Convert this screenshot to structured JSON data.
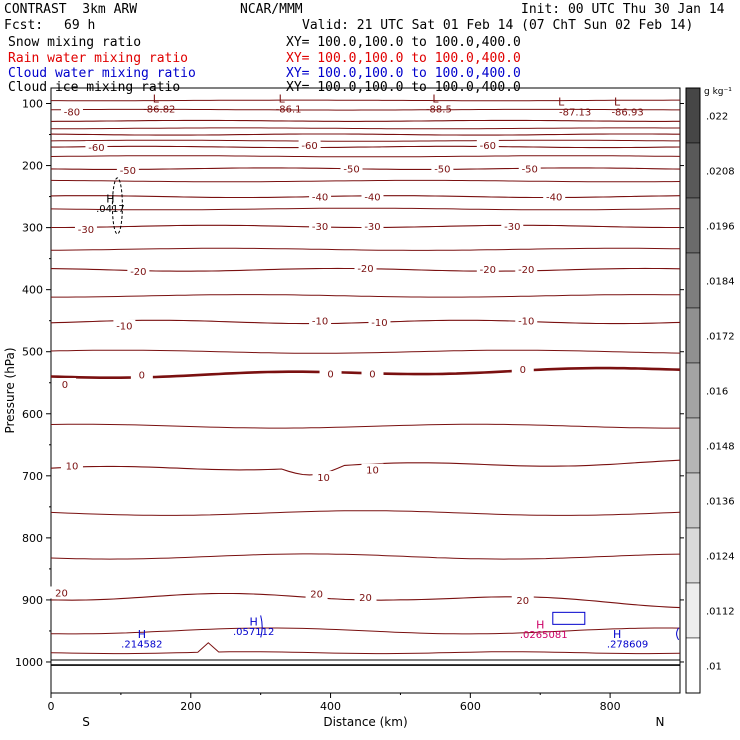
{
  "header": {
    "model": "CONTRAST  3km ARW",
    "center": "NCAR/MMM",
    "init": "Init: 00 UTC Thu 30 Jan 14",
    "fcst_label": "Fcst:",
    "fcst_value": "69 h",
    "valid": "Valid: 21 UTC Sat 01 Feb 14 (07 ChT Sun 02 Feb 14)"
  },
  "fields": [
    {
      "name": "Snow mixing ratio",
      "xy": "XY= 100.0,100.0 to 100.0,400.0",
      "color": "#000000"
    },
    {
      "name": "Rain water mixing ratio",
      "xy": "XY= 100.0,100.0 to 100.0,400.0",
      "color": "#e00000"
    },
    {
      "name": "Cloud water mixing ratio",
      "xy": "XY= 100.0,100.0 to 100.0,400.0",
      "color": "#0000cc"
    },
    {
      "name": "Cloud ice mixing ratio",
      "xy": "XY= 100.0,100.0 to 100.0,400.0",
      "color": "#000000"
    }
  ],
  "chart_data": {
    "type": "contour",
    "xlabel": "Distance (km)",
    "ylabel": "Pressure (hPa)",
    "x_range": [
      0,
      900
    ],
    "y_range": [
      1050,
      75
    ],
    "x_ticks": [
      "0",
      "200",
      "400",
      "600",
      "800"
    ],
    "x_tick_values": [
      0,
      200,
      400,
      600,
      800
    ],
    "y_ticks": [
      "100",
      "200",
      "300",
      "400",
      "500",
      "600",
      "700",
      "800",
      "900",
      "1000"
    ],
    "y_tick_values": [
      100,
      200,
      300,
      400,
      500,
      600,
      700,
      800,
      900,
      1000
    ],
    "end_labels": {
      "left": "S",
      "right": "N"
    },
    "temperature_contours_degC": [
      -80,
      -70,
      -60,
      -50,
      -40,
      -30,
      -20,
      -10,
      0,
      10,
      20
    ],
    "contour_labels": [
      {
        "text": "-80",
        "x": 30,
        "p": 113
      },
      {
        "text": "-60",
        "x": 65,
        "p": 170
      },
      {
        "text": "-60",
        "x": 370,
        "p": 167
      },
      {
        "text": "-60",
        "x": 625,
        "p": 167
      },
      {
        "text": "-50",
        "x": 110,
        "p": 207
      },
      {
        "text": "-50",
        "x": 430,
        "p": 205
      },
      {
        "text": "-50",
        "x": 560,
        "p": 205
      },
      {
        "text": "-50",
        "x": 685,
        "p": 205
      },
      {
        "text": "-40",
        "x": 385,
        "p": 250
      },
      {
        "text": "-40",
        "x": 460,
        "p": 250
      },
      {
        "text": "-40",
        "x": 720,
        "p": 250
      },
      {
        "text": "-30",
        "x": 50,
        "p": 302
      },
      {
        "text": "-30",
        "x": 385,
        "p": 297
      },
      {
        "text": "-30",
        "x": 460,
        "p": 297
      },
      {
        "text": "-30",
        "x": 660,
        "p": 297
      },
      {
        "text": "-20",
        "x": 125,
        "p": 370
      },
      {
        "text": "-20",
        "x": 450,
        "p": 365
      },
      {
        "text": "-20",
        "x": 625,
        "p": 367
      },
      {
        "text": "-20",
        "x": 680,
        "p": 367
      },
      {
        "text": "-10",
        "x": 105,
        "p": 458
      },
      {
        "text": "-10",
        "x": 385,
        "p": 450
      },
      {
        "text": "-10",
        "x": 470,
        "p": 452
      },
      {
        "text": "-10",
        "x": 680,
        "p": 450
      },
      {
        "text": "0",
        "x": 20,
        "p": 552
      },
      {
        "text": "0",
        "x": 130,
        "p": 537
      },
      {
        "text": "0",
        "x": 400,
        "p": 535
      },
      {
        "text": "0",
        "x": 460,
        "p": 535
      },
      {
        "text": "0",
        "x": 675,
        "p": 528
      },
      {
        "text": "10",
        "x": 30,
        "p": 683
      },
      {
        "text": "10",
        "x": 390,
        "p": 702
      },
      {
        "text": "10",
        "x": 460,
        "p": 690
      },
      {
        "text": "20",
        "x": 15,
        "p": 888
      },
      {
        "text": "20",
        "x": 380,
        "p": 890
      },
      {
        "text": "20",
        "x": 450,
        "p": 895
      },
      {
        "text": "20",
        "x": 675,
        "p": 900
      }
    ],
    "extrema_labels": [
      {
        "kind": "L",
        "value": "-86.82",
        "x": 150,
        "p": 92,
        "vx": 155,
        "vp": 108
      },
      {
        "kind": "L",
        "value": "-86.1",
        "x": 330,
        "p": 92,
        "vx": 340,
        "vp": 108
      },
      {
        "kind": "L",
        "value": "-88.5",
        "x": 550,
        "p": 92,
        "vx": 555,
        "vp": 108
      },
      {
        "kind": "L",
        "value": "-87.13",
        "x": 730,
        "p": 97,
        "vx": 750,
        "vp": 113
      },
      {
        "kind": "L",
        "value": "-86.93",
        "x": 810,
        "p": 97,
        "vx": 825,
        "vp": 113
      }
    ],
    "cloud_labels": [
      {
        "kind": "H",
        "value": ".214582",
        "x": 130,
        "p": 955,
        "vx": 130,
        "vp": 970,
        "color": "#0000cc"
      },
      {
        "kind": "H",
        "value": ".057112",
        "x": 290,
        "p": 935,
        "vx": 290,
        "vp": 950,
        "color": "#0000cc"
      },
      {
        "kind": "H",
        "value": ".0265081",
        "x": 700,
        "p": 940,
        "vx": 705,
        "vp": 955,
        "color": "#cc0066"
      },
      {
        "kind": "H",
        "value": ".278609",
        "x": 810,
        "p": 955,
        "vx": 825,
        "vp": 970,
        "color": "#0000cc"
      },
      {
        "kind": "H",
        "value": ".0417",
        "x": 85,
        "p": 253,
        "vx": 85,
        "vp": 268,
        "color": "#000000"
      }
    ],
    "colorbar": {
      "unit": "g kg⁻¹",
      "labels": [
        ".022",
        ".0208",
        ".0196",
        ".0184",
        ".0172",
        ".016",
        ".0148",
        ".0136",
        ".0124",
        ".0112",
        ".01"
      ]
    }
  }
}
